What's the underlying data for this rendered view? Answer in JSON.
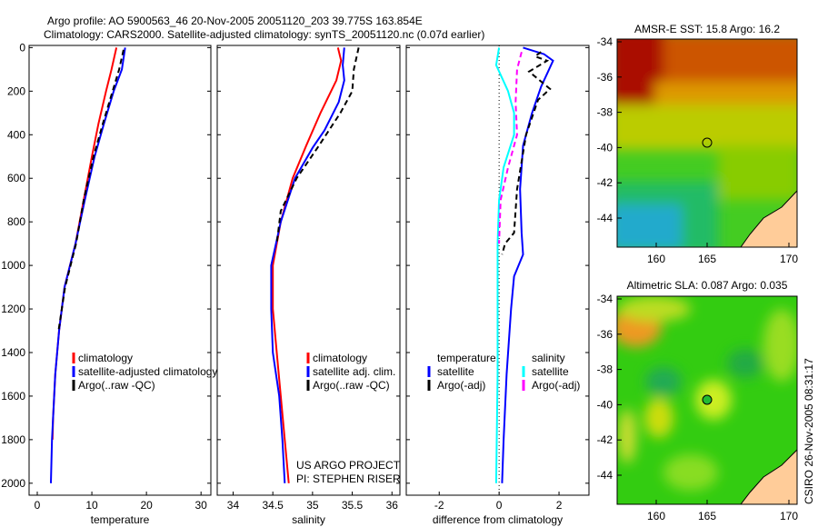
{
  "title_line1": "Argo profile: AO 5900563_46 20-Nov-2005 20051120_203 39.775S 163.854E",
  "title_line2": "Climatology: CARS2000. Satellite-adjusted climatology: synTS_20051120.nc (0.07d earlier)",
  "credit": "CSIRO 26-Nov-2005 08:31:17",
  "project_line1": "US ARGO PROJECT",
  "project_line2": "PI: STEPHEN RISER",
  "colors": {
    "red": "#ff0000",
    "blue": "#0000ff",
    "black": "#000000",
    "cyan": "#00ffff",
    "magenta": "#ff00ff",
    "land": "#ffcc99"
  },
  "chart_data": [
    {
      "type": "line",
      "xlabel": "temperature",
      "xlim": [
        -1.5,
        31.8
      ],
      "ylim": [
        2055,
        -10
      ],
      "xticks": [
        "0",
        "10",
        "20",
        "30"
      ],
      "xtick_values": [
        0,
        10,
        20,
        30
      ],
      "yticks": [
        "0",
        "200",
        "400",
        "600",
        "800",
        "1000",
        "1200",
        "1400",
        "1600",
        "1800",
        "2000"
      ],
      "ytick_values": [
        0,
        200,
        400,
        600,
        800,
        1000,
        1200,
        1400,
        1600,
        1800,
        2000
      ],
      "legend": [
        "climatology",
        "satellite-adjusted climatology",
        "Argo(..raw -QC)"
      ],
      "series": [
        {
          "name": "climatology",
          "color": "#ff0000",
          "dash": false,
          "points": [
            [
              14.5,
              0
            ],
            [
              13.6,
              100
            ],
            [
              12.6,
              200
            ],
            [
              11.2,
              350
            ],
            [
              10,
              500
            ],
            [
              8.5,
              700
            ],
            [
              7,
              900
            ],
            [
              5,
              1100
            ],
            [
              4,
              1300
            ],
            [
              3.3,
              1500
            ],
            [
              2.9,
              1700
            ],
            [
              2.8,
              1800
            ]
          ]
        },
        {
          "name": "satellite-adjusted climatology",
          "color": "#0000ff",
          "dash": false,
          "points": [
            [
              16.1,
              0
            ],
            [
              15.5,
              100
            ],
            [
              14,
              200
            ],
            [
              12.2,
              350
            ],
            [
              10.5,
              500
            ],
            [
              8.7,
              700
            ],
            [
              7,
              900
            ],
            [
              5,
              1100
            ],
            [
              4,
              1300
            ],
            [
              3.3,
              1500
            ],
            [
              2.7,
              1800
            ],
            [
              2.5,
              2000
            ]
          ]
        },
        {
          "name": "Argo(..raw -QC)",
          "color": "#000000",
          "dash": true,
          "points": [
            [
              15.8,
              10
            ],
            [
              15,
              100
            ],
            [
              13.8,
              200
            ],
            [
              12,
              350
            ],
            [
              10.3,
              500
            ],
            [
              8.5,
              700
            ],
            [
              7.1,
              900
            ],
            [
              5.1,
              1100
            ],
            [
              3.9,
              1300
            ]
          ]
        }
      ]
    },
    {
      "type": "line",
      "xlabel": "salinity",
      "xlim": [
        33.8,
        36.1
      ],
      "ylim": [
        2055,
        -10
      ],
      "xticks": [
        "34",
        "34.5",
        "35",
        "35.5",
        "36"
      ],
      "xtick_values": [
        34,
        34.5,
        35,
        35.5,
        36
      ],
      "legend": [
        "climatology",
        "satellite adj. clim.",
        "Argo(..raw -QC)"
      ],
      "series": [
        {
          "name": "climatology",
          "color": "#ff0000",
          "dash": false,
          "points": [
            [
              35.32,
              0
            ],
            [
              35.36,
              60
            ],
            [
              35.3,
              150
            ],
            [
              35.1,
              300
            ],
            [
              34.92,
              450
            ],
            [
              34.75,
              600
            ],
            [
              34.6,
              800
            ],
            [
              34.5,
              1000
            ],
            [
              34.5,
              1200
            ],
            [
              34.55,
              1400
            ],
            [
              34.6,
              1600
            ],
            [
              34.65,
              1800
            ],
            [
              34.7,
              2000
            ]
          ]
        },
        {
          "name": "satellite adj. clim.",
          "color": "#0000ff",
          "dash": false,
          "points": [
            [
              35.4,
              0
            ],
            [
              35.38,
              80
            ],
            [
              35.4,
              150
            ],
            [
              35.33,
              250
            ],
            [
              35.15,
              380
            ],
            [
              35,
              460
            ],
            [
              34.78,
              600
            ],
            [
              34.6,
              800
            ],
            [
              34.48,
              1000
            ],
            [
              34.48,
              1200
            ],
            [
              34.5,
              1400
            ],
            [
              34.58,
              1600
            ],
            [
              34.62,
              1800
            ],
            [
              34.65,
              2000
            ]
          ]
        },
        {
          "name": "Argo(..raw -QC)",
          "color": "#000000",
          "dash": true,
          "points": [
            [
              35.58,
              0
            ],
            [
              35.52,
              100
            ],
            [
              35.5,
              200
            ],
            [
              35.35,
              300
            ],
            [
              35.08,
              450
            ],
            [
              34.8,
              600
            ],
            [
              34.6,
              750
            ],
            [
              34.55,
              900
            ]
          ]
        }
      ]
    },
    {
      "type": "line",
      "xlabel": "difference from climatology",
      "xlim": [
        -3.1,
        3
      ],
      "ylim": [
        2055,
        -10
      ],
      "xticks": [
        "-2",
        "0",
        "2"
      ],
      "xtick_values": [
        -2,
        0,
        2
      ],
      "legend_groups": [
        {
          "title": "temperature",
          "items": [
            "satellite",
            "Argo(-adj)"
          ]
        },
        {
          "title": "salinity",
          "items": [
            "satellite",
            "Argo(-adj)"
          ]
        }
      ],
      "series": [
        {
          "name": "temperature satellite",
          "color": "#0000ff",
          "dash": false,
          "points": [
            [
              0.8,
              0
            ],
            [
              1.5,
              30
            ],
            [
              1.8,
              60
            ],
            [
              1.6,
              120
            ],
            [
              1.4,
              180
            ],
            [
              1.1,
              300
            ],
            [
              0.8,
              450
            ],
            [
              0.7,
              650
            ],
            [
              0.75,
              850
            ],
            [
              0.8,
              950
            ],
            [
              0.5,
              1050
            ],
            [
              0.4,
              1200
            ],
            [
              0.25,
              1500
            ],
            [
              0.15,
              1800
            ],
            [
              0.1,
              2000
            ]
          ]
        },
        {
          "name": "temperature Argo(-adj)",
          "color": "#000000",
          "dash": true,
          "points": [
            [
              1.4,
              20
            ],
            [
              1.2,
              40
            ],
            [
              1.6,
              60
            ],
            [
              1.0,
              110
            ],
            [
              1.7,
              190
            ],
            [
              1.3,
              240
            ],
            [
              0.9,
              400
            ],
            [
              0.6,
              650
            ],
            [
              0.5,
              850
            ],
            [
              0.2,
              900
            ],
            [
              0.1,
              950
            ]
          ]
        },
        {
          "name": "salinity satellite",
          "color": "#00ffff",
          "dash": false,
          "points": [
            [
              0,
              0
            ],
            [
              -0.1,
              80
            ],
            [
              0.3,
              200
            ],
            [
              0.5,
              300
            ],
            [
              0.5,
              400
            ],
            [
              0.15,
              550
            ],
            [
              0,
              700
            ],
            [
              -0.05,
              900
            ],
            [
              -0.05,
              1500
            ],
            [
              -0.1,
              2000
            ]
          ]
        },
        {
          "name": "salinity Argo(-adj)",
          "color": "#ff00ff",
          "dash": true,
          "points": [
            [
              0.75,
              20
            ],
            [
              0.6,
              100
            ],
            [
              0.55,
              250
            ],
            [
              0.6,
              400
            ],
            [
              0.3,
              550
            ],
            [
              0.05,
              700
            ],
            [
              0,
              900
            ]
          ]
        }
      ]
    },
    {
      "type": "heatmap",
      "title": "AMSR-E SST: 15.8 Argo: 16.2",
      "xticks": [
        "160",
        "165",
        "170"
      ],
      "yticks": [
        "-34",
        "-36",
        "-38",
        "-40",
        "-42",
        "-44"
      ],
      "marker": [
        163.854,
        -39.775
      ]
    },
    {
      "type": "heatmap",
      "title": "Altimetric SLA: 0.087 Argo: 0.035",
      "xticks": [
        "160",
        "165",
        "170"
      ],
      "yticks": [
        "-34",
        "-36",
        "-38",
        "-40",
        "-42",
        "-44"
      ],
      "marker": [
        163.854,
        -39.775
      ]
    }
  ]
}
